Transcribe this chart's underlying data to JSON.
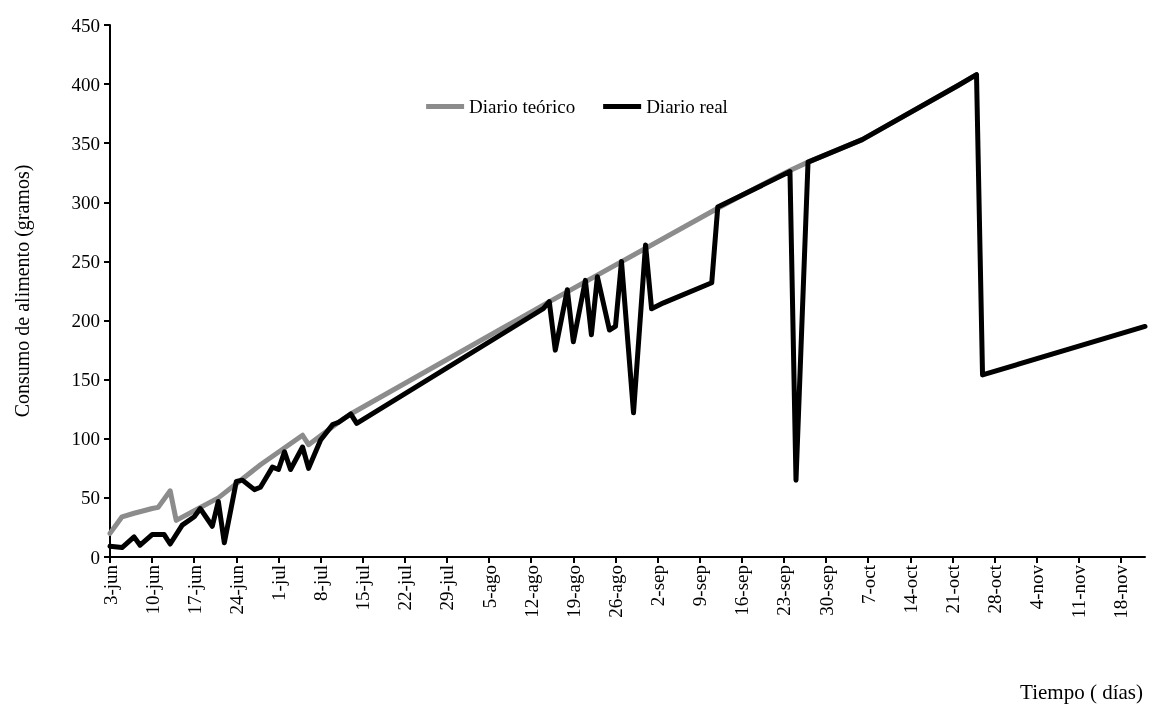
{
  "chart_data": {
    "type": "line",
    "xlabel": "Tiempo ( días)",
    "ylabel": "Consumo de alimento (gramos)",
    "series": [
      {
        "name": "Diario teórico",
        "color": "#8c8c8c",
        "x": [
          "--06-03",
          "--06-05",
          "--06-07",
          "--06-10",
          "--06-11",
          "--06-13",
          "--06-14",
          "--06-21",
          "--06-28",
          "--07-05",
          "--07-06",
          "--07-11",
          "--07-13",
          "--08-14",
          "--09-12",
          "--09-16",
          "--09-24",
          "--09-27",
          "--10-06",
          "--10-22",
          "--10-25"
        ],
        "values": [
          20,
          34,
          37,
          41,
          42,
          56,
          31,
          50,
          78,
          103,
          95,
          114,
          121,
          213,
          295,
          306,
          327,
          334,
          353,
          399,
          408
        ]
      },
      {
        "name": "Diario real",
        "color": "#000000",
        "x": [
          "--06-03",
          "--06-05",
          "--06-07",
          "--06-08",
          "--06-10",
          "--06-12",
          "--06-13",
          "--06-15",
          "--06-17",
          "--06-18",
          "--06-20",
          "--06-21",
          "--06-22",
          "--06-24",
          "--06-25",
          "--06-27",
          "--06-28",
          "--06-30",
          "--07-01",
          "--07-02",
          "--07-03",
          "--07-05",
          "--07-06",
          "--07-08",
          "--07-10",
          "--07-11",
          "--07-13",
          "--07-14",
          "--08-14",
          "--08-15",
          "--08-16",
          "--08-18",
          "--08-19",
          "--08-21",
          "--08-22",
          "--08-23",
          "--08-25",
          "--08-26",
          "--08-27",
          "--08-29",
          "--08-31",
          "--09-01",
          "--09-03",
          "--09-11",
          "--09-12",
          "--09-16",
          "--09-24",
          "--09-25",
          "--09-27",
          "--10-06",
          "--10-22",
          "--10-25",
          "--10-26",
          "--11-22"
        ],
        "values": [
          9,
          8,
          17,
          10,
          19,
          19,
          11,
          27,
          34,
          41,
          26,
          47,
          12,
          64,
          65,
          57,
          59,
          76,
          74,
          89,
          74,
          93,
          75,
          99,
          112,
          114,
          121,
          113,
          210,
          216,
          175,
          226,
          182,
          234,
          188,
          237,
          192,
          195,
          250,
          122,
          264,
          210,
          215,
          232,
          296,
          306,
          326,
          65,
          334,
          353,
          399,
          408,
          154,
          195
        ]
      }
    ],
    "xlim": [
      "--06-03",
      "--11-22"
    ],
    "xticks": [
      {
        "value": "--06-03",
        "label": "3-jun"
      },
      {
        "value": "--06-10",
        "label": "10-jun"
      },
      {
        "value": "--06-17",
        "label": "17-jun"
      },
      {
        "value": "--06-24",
        "label": "24-jun"
      },
      {
        "value": "--07-01",
        "label": "1-jul"
      },
      {
        "value": "--07-08",
        "label": "8-jul"
      },
      {
        "value": "--07-15",
        "label": "15-jul"
      },
      {
        "value": "--07-22",
        "label": "22-jul"
      },
      {
        "value": "--07-29",
        "label": "29-jul"
      },
      {
        "value": "--08-05",
        "label": "5-ago"
      },
      {
        "value": "--08-12",
        "label": "12-ago"
      },
      {
        "value": "--08-19",
        "label": "19-ago"
      },
      {
        "value": "--08-26",
        "label": "26-ago"
      },
      {
        "value": "--09-02",
        "label": "2-sep"
      },
      {
        "value": "--09-09",
        "label": "9-sep"
      },
      {
        "value": "--09-16",
        "label": "16-sep"
      },
      {
        "value": "--09-23",
        "label": "23-sep"
      },
      {
        "value": "--09-30",
        "label": "30-sep"
      },
      {
        "value": "--10-07",
        "label": "7-oct"
      },
      {
        "value": "--10-14",
        "label": "14-oct"
      },
      {
        "value": "--10-21",
        "label": "21-oct"
      },
      {
        "value": "--10-28",
        "label": "28-oct"
      },
      {
        "value": "--11-04",
        "label": "4-nov"
      },
      {
        "value": "--11-11",
        "label": "11-nov"
      },
      {
        "value": "--11-18",
        "label": "18-nov"
      }
    ],
    "ylim": [
      0,
      450
    ],
    "yticks": [
      0,
      50,
      100,
      150,
      200,
      250,
      300,
      350,
      400,
      450
    ],
    "grid": false,
    "legend": "top",
    "line_style": "solid"
  }
}
